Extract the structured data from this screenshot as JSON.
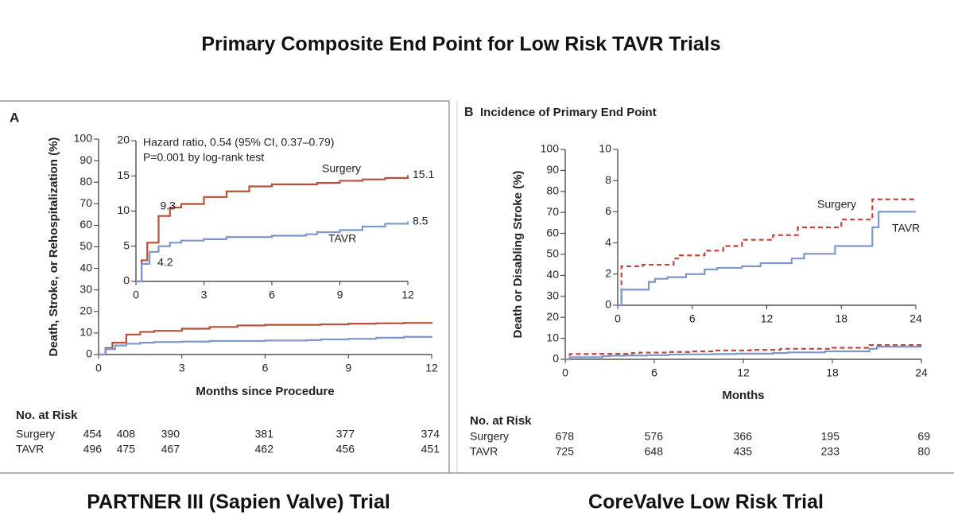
{
  "title": "Primary Composite End Point for Low Risk TAVR Trials",
  "panels": [
    {
      "label": "A",
      "caption": "PARTNER III (Sapien Valve) Trial",
      "risk_table": {
        "header": "No. at Risk",
        "rows": [
          {
            "name": "Surgery",
            "values": [
              454,
              408,
              390,
              381,
              377,
              374
            ]
          },
          {
            "name": "TAVR",
            "values": [
              496,
              475,
              467,
              462,
              456,
              451
            ]
          }
        ]
      }
    },
    {
      "label": "B",
      "caption": "CoreValve Low Risk Trial",
      "risk_table": {
        "header": "No. at Risk",
        "rows": [
          {
            "name": "Surgery",
            "values": [
              678,
              576,
              366,
              195,
              69
            ]
          },
          {
            "name": "TAVR",
            "values": [
              725,
              648,
              435,
              233,
              80
            ]
          }
        ]
      }
    }
  ],
  "chart_data": [
    {
      "type": "step",
      "x_label": "Months since Procedure",
      "y_label": "Death, Stroke, or Rehospitalization (%)",
      "xlim": [
        0,
        12
      ],
      "xticks": [
        0,
        3,
        6,
        9,
        12
      ],
      "ylim": [
        0,
        100
      ],
      "yticks": [
        0,
        10,
        20,
        30,
        40,
        50,
        60,
        70,
        80,
        90,
        100
      ],
      "series": [
        {
          "color": "#b5513a",
          "style": "solid",
          "x": [
            0,
            0.25,
            0.5,
            1,
            1.5,
            2,
            3,
            4,
            5,
            6,
            8,
            9,
            10,
            11,
            12
          ],
          "values": [
            0,
            3,
            5.5,
            9.3,
            10.5,
            11,
            12,
            12.8,
            13.5,
            13.8,
            14,
            14.3,
            14.5,
            14.7,
            15.1
          ]
        },
        {
          "color": "#7d97c8",
          "style": "solid",
          "x": [
            0,
            0.25,
            0.6,
            1,
            1.5,
            2,
            3,
            4,
            6,
            7.5,
            8,
            9,
            10,
            11,
            12
          ],
          "values": [
            0,
            2.5,
            4.2,
            5,
            5.5,
            5.8,
            6,
            6.3,
            6.5,
            6.7,
            7,
            7.3,
            7.8,
            8.2,
            8.5
          ]
        }
      ]
    },
    {
      "type": "step",
      "annotations": [
        "Hazard ratio, 0.54 (95% CI, 0.37–0.79)",
        "P=0.001 by log-rank test"
      ],
      "xlim": [
        0,
        12
      ],
      "xticks": [
        0,
        3,
        6,
        9,
        12
      ],
      "ylim": [
        0,
        20
      ],
      "yticks": [
        0,
        5,
        10,
        15,
        20
      ],
      "series": [
        {
          "name": "Surgery",
          "color": "#b5513a",
          "style": "solid",
          "x": [
            0,
            0.25,
            0.5,
            1,
            1.5,
            2,
            3,
            4,
            5,
            6,
            8,
            9,
            10,
            11,
            12
          ],
          "values": [
            0,
            3,
            5.5,
            9.3,
            10.5,
            11,
            12,
            12.8,
            13.5,
            13.8,
            14,
            14.3,
            14.5,
            14.7,
            15.1
          ]
        },
        {
          "name": "TAVR",
          "color": "#7d97c8",
          "style": "solid",
          "x": [
            0,
            0.25,
            0.6,
            1,
            1.5,
            2,
            3,
            4,
            6,
            7.5,
            8,
            9,
            10,
            11,
            12
          ],
          "values": [
            0,
            2.5,
            4.2,
            5,
            5.5,
            5.8,
            6,
            6.3,
            6.5,
            6.7,
            7,
            7.3,
            7.8,
            8.2,
            8.5
          ]
        }
      ]
    },
    {
      "type": "step",
      "title": "Incidence of Primary End Point",
      "x_label": "Months",
      "y_label": "Death or Disabling Stroke (%)",
      "xlim": [
        0,
        24
      ],
      "xticks": [
        0,
        6,
        12,
        18,
        24
      ],
      "ylim": [
        0,
        100
      ],
      "yticks": [
        0,
        10,
        20,
        30,
        40,
        50,
        60,
        70,
        80,
        90,
        100
      ],
      "series": [
        {
          "color": "#c0453a",
          "style": "dashed",
          "x": [
            0,
            0.3,
            2,
            4.5,
            5,
            7,
            8.5,
            10,
            12.5,
            14.5,
            18,
            20.5,
            24
          ],
          "values": [
            0,
            2.5,
            2.6,
            3,
            3.2,
            3.5,
            3.8,
            4.2,
            4.5,
            5,
            5.5,
            6.8,
            6.8
          ]
        },
        {
          "color": "#7d97c8",
          "style": "solid",
          "x": [
            0,
            0.3,
            1.8,
            2.5,
            3,
            4,
            5.5,
            7,
            8,
            10,
            11.5,
            14,
            15,
            17.5,
            20.5,
            21,
            24
          ],
          "values": [
            0,
            1,
            1,
            1.5,
            1.7,
            1.8,
            2,
            2.3,
            2.4,
            2.5,
            2.7,
            3,
            3.3,
            3.8,
            5,
            6,
            6
          ]
        }
      ]
    },
    {
      "type": "step",
      "xlim": [
        0,
        24
      ],
      "xticks": [
        0,
        6,
        12,
        18,
        24
      ],
      "ylim": [
        0,
        10
      ],
      "yticks": [
        0,
        2,
        4,
        6,
        8,
        10
      ],
      "series": [
        {
          "name": "Surgery",
          "color": "#c0453a",
          "style": "dashed",
          "x": [
            0,
            0.3,
            2,
            4.5,
            5,
            7,
            8.5,
            10,
            12.5,
            14.5,
            18,
            20.5,
            24
          ],
          "values": [
            0,
            2.5,
            2.6,
            3,
            3.2,
            3.5,
            3.8,
            4.2,
            4.5,
            5,
            5.5,
            6.8,
            6.8
          ]
        },
        {
          "name": "TAVR",
          "color": "#7d97c8",
          "style": "solid",
          "x": [
            0,
            0.3,
            1.8,
            2.5,
            3,
            4,
            5.5,
            7,
            8,
            10,
            11.5,
            14,
            15,
            17.5,
            20.5,
            21,
            24
          ],
          "values": [
            0,
            1,
            1,
            1.5,
            1.7,
            1.8,
            2,
            2.3,
            2.4,
            2.5,
            2.7,
            3,
            3.3,
            3.8,
            5,
            6,
            6
          ]
        }
      ]
    }
  ]
}
